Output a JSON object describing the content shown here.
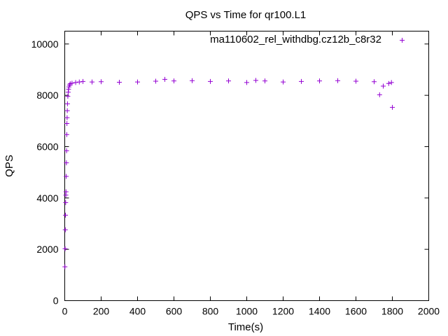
{
  "chart_data": {
    "type": "scatter",
    "title": "QPS vs Time for qr100.L1",
    "xlabel": "Time(s)",
    "ylabel": "QPS",
    "xlim": [
      0,
      2000
    ],
    "ylim": [
      0,
      10500
    ],
    "xticks": [
      0,
      200,
      400,
      600,
      800,
      1000,
      1200,
      1400,
      1600,
      1800,
      2000
    ],
    "yticks": [
      0,
      2000,
      4000,
      6000,
      8000,
      10000
    ],
    "grid": false,
    "legend_position": "top-right",
    "marker": "+",
    "series": [
      {
        "name": "ma110602_rel_withdbg.cz12b_c8r32",
        "color": "#9400d3",
        "points": [
          [
            1,
            1320
          ],
          [
            2,
            2020
          ],
          [
            3,
            2760
          ],
          [
            4,
            3330
          ],
          [
            5,
            3820
          ],
          [
            6,
            4110
          ],
          [
            7,
            4240
          ],
          [
            8,
            4840
          ],
          [
            9,
            5370
          ],
          [
            10,
            5840
          ],
          [
            11,
            6470
          ],
          [
            12,
            6900
          ],
          [
            13,
            7130
          ],
          [
            14,
            7400
          ],
          [
            15,
            7670
          ],
          [
            17,
            7960
          ],
          [
            19,
            8120
          ],
          [
            21,
            8240
          ],
          [
            23,
            8330
          ],
          [
            26,
            8400
          ],
          [
            30,
            8450
          ],
          [
            40,
            8470
          ],
          [
            60,
            8500
          ],
          [
            80,
            8520
          ],
          [
            100,
            8540
          ],
          [
            150,
            8520
          ],
          [
            200,
            8530
          ],
          [
            300,
            8510
          ],
          [
            400,
            8520
          ],
          [
            500,
            8550
          ],
          [
            550,
            8620
          ],
          [
            600,
            8560
          ],
          [
            700,
            8570
          ],
          [
            800,
            8540
          ],
          [
            900,
            8560
          ],
          [
            1000,
            8500
          ],
          [
            1050,
            8580
          ],
          [
            1100,
            8560
          ],
          [
            1200,
            8520
          ],
          [
            1300,
            8540
          ],
          [
            1400,
            8560
          ],
          [
            1500,
            8570
          ],
          [
            1600,
            8550
          ],
          [
            1700,
            8530
          ],
          [
            1730,
            8020
          ],
          [
            1750,
            8360
          ],
          [
            1780,
            8460
          ],
          [
            1795,
            8500
          ],
          [
            1800,
            7530
          ]
        ]
      }
    ]
  }
}
